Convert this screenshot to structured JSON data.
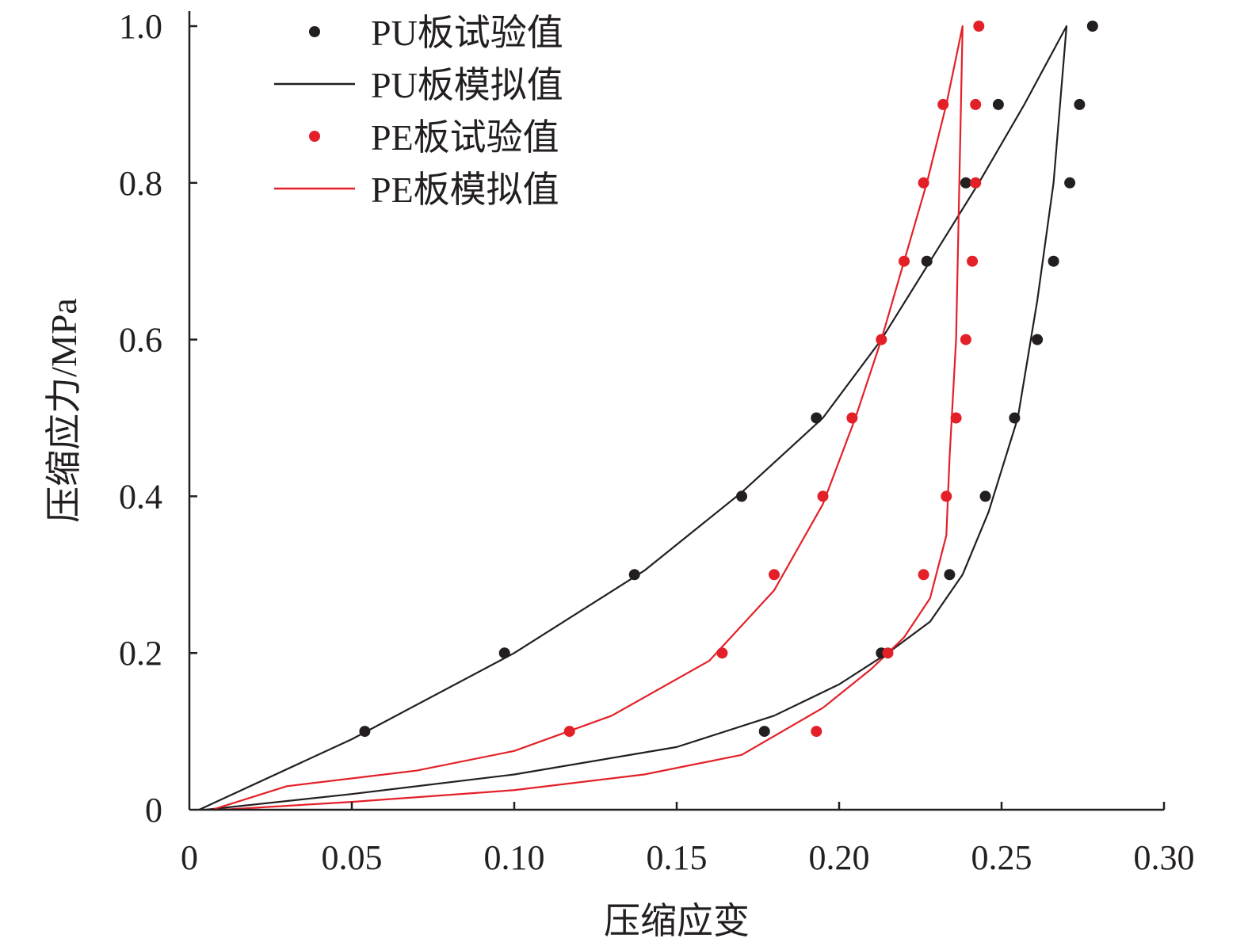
{
  "chart_data": {
    "type": "scatter",
    "title": "",
    "xlabel": "压缩应变",
    "ylabel": "压缩应力/MPa",
    "xlim": [
      0,
      0.3
    ],
    "ylim": [
      0,
      1.0
    ],
    "xticks": [
      0,
      0.05,
      0.1,
      0.15,
      0.2,
      0.25,
      0.3
    ],
    "xtick_labels": [
      "0",
      "0.05",
      "0.10",
      "0.15",
      "0.20",
      "0.25",
      "0.30"
    ],
    "yticks": [
      0,
      0.2,
      0.4,
      0.6,
      0.8,
      1.0
    ],
    "ytick_labels": [
      "0",
      "0.2",
      "0.4",
      "0.6",
      "0.8",
      "1.0"
    ],
    "grid": false,
    "legend_position": "top-left",
    "series": [
      {
        "name": "PU板试验值",
        "kind": "points",
        "color": "#231f20",
        "x": [
          0.054,
          0.097,
          0.137,
          0.17,
          0.193,
          0.227,
          0.239,
          0.249,
          0.278,
          0.274,
          0.271,
          0.266,
          0.261,
          0.254,
          0.245,
          0.234,
          0.213,
          0.177
        ],
        "y": [
          0.1,
          0.2,
          0.3,
          0.4,
          0.5,
          0.7,
          0.8,
          0.9,
          1.0,
          0.9,
          0.8,
          0.7,
          0.6,
          0.5,
          0.4,
          0.3,
          0.2,
          0.1
        ]
      },
      {
        "name": "PU板模拟值",
        "kind": "line",
        "color": "#231f20",
        "x": [
          0.003,
          0.05,
          0.1,
          0.14,
          0.17,
          0.195,
          0.213,
          0.228,
          0.243,
          0.257,
          0.27,
          0.266,
          0.261,
          0.255,
          0.246,
          0.238,
          0.228,
          0.215,
          0.2,
          0.18,
          0.15,
          0.1,
          0.05,
          0.005
        ],
        "y": [
          0,
          0.09,
          0.2,
          0.305,
          0.405,
          0.5,
          0.6,
          0.7,
          0.8,
          0.9,
          1.0,
          0.8,
          0.65,
          0.5,
          0.38,
          0.3,
          0.24,
          0.2,
          0.16,
          0.12,
          0.08,
          0.045,
          0.02,
          0
        ]
      },
      {
        "name": "PE板试验值",
        "kind": "points",
        "color": "#e32028",
        "x": [
          0.117,
          0.164,
          0.18,
          0.195,
          0.204,
          0.213,
          0.22,
          0.226,
          0.232,
          0.243,
          0.242,
          0.242,
          0.241,
          0.239,
          0.236,
          0.233,
          0.226,
          0.215,
          0.193
        ],
        "y": [
          0.1,
          0.2,
          0.3,
          0.4,
          0.5,
          0.6,
          0.7,
          0.8,
          0.9,
          1.0,
          0.9,
          0.8,
          0.7,
          0.6,
          0.5,
          0.4,
          0.3,
          0.2,
          0.1
        ]
      },
      {
        "name": "PE板模拟值",
        "kind": "line",
        "color": "#e32028",
        "x": [
          0.007,
          0.03,
          0.07,
          0.1,
          0.13,
          0.16,
          0.18,
          0.195,
          0.205,
          0.213,
          0.22,
          0.227,
          0.233,
          0.238,
          0.237,
          0.236,
          0.234,
          0.233,
          0.228,
          0.22,
          0.21,
          0.195,
          0.17,
          0.14,
          0.1,
          0.05,
          0.01
        ],
        "y": [
          0,
          0.03,
          0.05,
          0.075,
          0.12,
          0.19,
          0.28,
          0.39,
          0.5,
          0.6,
          0.7,
          0.8,
          0.9,
          1.0,
          0.8,
          0.6,
          0.45,
          0.35,
          0.27,
          0.22,
          0.18,
          0.13,
          0.07,
          0.045,
          0.025,
          0.01,
          0
        ]
      }
    ]
  }
}
